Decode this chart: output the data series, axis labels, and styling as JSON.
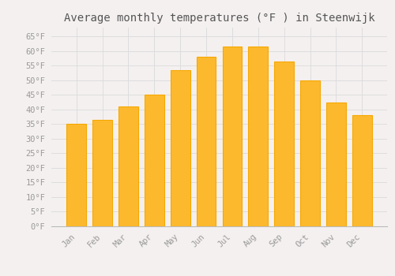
{
  "title": "Average monthly temperatures (°F ) in Steenwijk",
  "months": [
    "Jan",
    "Feb",
    "Mar",
    "Apr",
    "May",
    "Jun",
    "Jul",
    "Aug",
    "Sep",
    "Oct",
    "Nov",
    "Dec"
  ],
  "values": [
    35,
    36.5,
    41,
    45,
    53.5,
    58,
    61.5,
    61.5,
    56.5,
    50,
    42.5,
    38
  ],
  "bar_color": "#FDB92E",
  "bar_edge_color": "#F5A800",
  "background_color": "#F5F0F0",
  "grid_color": "#DDDDDD",
  "ytick_labels": [
    "0°F",
    "5°F",
    "10°F",
    "15°F",
    "20°F",
    "25°F",
    "30°F",
    "35°F",
    "40°F",
    "45°F",
    "50°F",
    "55°F",
    "60°F",
    "65°F"
  ],
  "ytick_values": [
    0,
    5,
    10,
    15,
    20,
    25,
    30,
    35,
    40,
    45,
    50,
    55,
    60,
    65
  ],
  "ylim": [
    0,
    68
  ],
  "title_fontsize": 10,
  "tick_fontsize": 7.5,
  "tick_color": "#999999",
  "font_family": "monospace"
}
